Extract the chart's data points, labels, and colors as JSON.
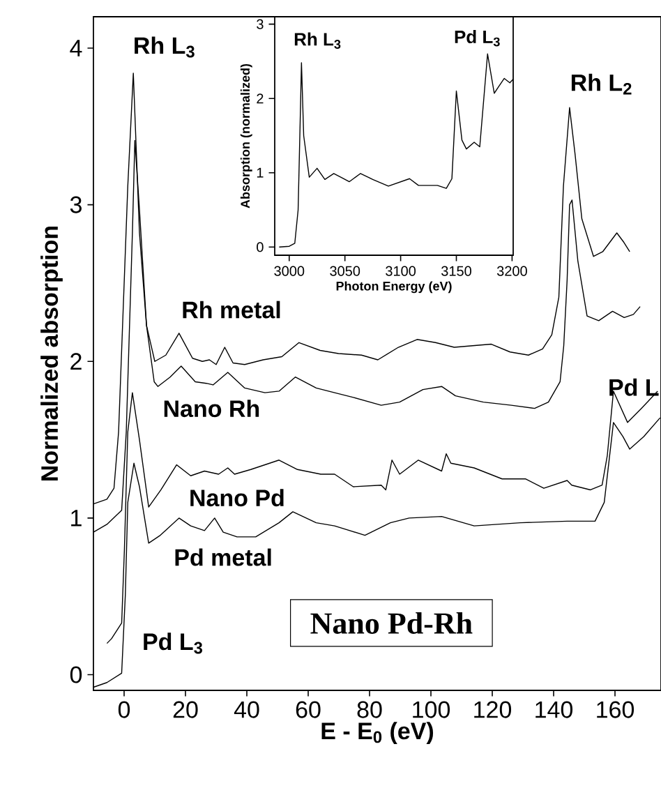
{
  "chart_data": [
    {
      "type": "line",
      "xlabel": "E - E$_{0}$ (eV)",
      "ylabel": "Normalized absorption",
      "xlim": [
        -10,
        175
      ],
      "ylim": [
        -0.1,
        4.2
      ],
      "xticks": [
        0,
        20,
        40,
        60,
        80,
        100,
        120,
        140,
        160
      ],
      "yticks": [
        0,
        1,
        2,
        3,
        4
      ],
      "series": [
        {
          "name": "Rh metal",
          "color": "#000000",
          "x": [
            -10,
            -5.6,
            -3.3,
            -1.8,
            1.2,
            3,
            5,
            7.3,
            10,
            13.6,
            17.9,
            22.3,
            25.5,
            27.8,
            30,
            32.8,
            35.5,
            39.3,
            45.3,
            51.4,
            57,
            63.9,
            69.9,
            77.4,
            82.7,
            89.4,
            95.5,
            101.5,
            107.6,
            113.6,
            119.7,
            125.8,
            131.8,
            136.4,
            139.4,
            141.7,
            143.2,
            145.2,
            147,
            149.2,
            153,
            156,
            160.6,
            162.9,
            164.8
          ],
          "values": [
            1.09,
            1.12,
            1.19,
            1.55,
            3.12,
            3.84,
            2.82,
            2.23,
            2.0,
            2.04,
            2.18,
            2.02,
            2.0,
            2.01,
            1.98,
            2.09,
            1.99,
            1.98,
            2.01,
            2.03,
            2.12,
            2.07,
            2.05,
            2.04,
            2.01,
            2.09,
            2.14,
            2.12,
            2.09,
            2.1,
            2.11,
            2.06,
            2.04,
            2.08,
            2.17,
            2.41,
            3.12,
            3.62,
            3.32,
            2.91,
            2.67,
            2.7,
            2.82,
            2.76,
            2.7
          ]
        },
        {
          "name": "Nano Rh",
          "color": "#000000",
          "x": [
            -10,
            -5.6,
            -0.8,
            0.7,
            2.7,
            3.5,
            5,
            7.3,
            9.8,
            11,
            15,
            18.6,
            23.2,
            26.8,
            29,
            33.8,
            39.3,
            45.9,
            50.5,
            55.8,
            62.6,
            68.6,
            74.7,
            83.8,
            89.8,
            97.4,
            103.5,
            108,
            117.1,
            126.2,
            133.8,
            138.3,
            142.1,
            143.3,
            144.4,
            145.2,
            146,
            147.9,
            150.9,
            154.7,
            159.2,
            163,
            166,
            168.2
          ],
          "values": [
            0.91,
            0.96,
            1.05,
            1.55,
            2.82,
            3.41,
            2.97,
            2.23,
            1.87,
            1.84,
            1.9,
            1.97,
            1.87,
            1.86,
            1.85,
            1.93,
            1.83,
            1.8,
            1.81,
            1.9,
            1.83,
            1.8,
            1.77,
            1.72,
            1.74,
            1.82,
            1.84,
            1.78,
            1.74,
            1.72,
            1.7,
            1.74,
            1.87,
            2.1,
            2.52,
            3.0,
            3.03,
            2.64,
            2.29,
            2.26,
            2.32,
            2.28,
            2.3,
            2.35
          ]
        },
        {
          "name": "Nano Pd",
          "color": "#000000",
          "x": [
            -5.6,
            -4.1,
            -0.8,
            0.1,
            1.2,
            2.7,
            5,
            8,
            12,
            17.1,
            21.7,
            26.2,
            30.8,
            33.8,
            36,
            41.3,
            50.5,
            56.5,
            64.1,
            68.6,
            74.7,
            83.8,
            85.3,
            87.3,
            89.8,
            95.9,
            103.5,
            105,
            106.5,
            114.1,
            123.2,
            130.8,
            136.8,
            144.4,
            145.9,
            152,
            155.8,
            157.5,
            159.5,
            164.1,
            168.6,
            173.9
          ],
          "values": [
            0.2,
            0.23,
            0.33,
            0.8,
            1.55,
            1.8,
            1.5,
            1.07,
            1.18,
            1.34,
            1.27,
            1.3,
            1.28,
            1.32,
            1.28,
            1.31,
            1.37,
            1.31,
            1.28,
            1.28,
            1.2,
            1.21,
            1.18,
            1.37,
            1.28,
            1.37,
            1.3,
            1.41,
            1.35,
            1.32,
            1.25,
            1.25,
            1.19,
            1.24,
            1.21,
            1.18,
            1.21,
            1.4,
            1.81,
            1.61,
            1.7,
            1.81
          ]
        },
        {
          "name": "Pd metal",
          "color": "#000000",
          "x": [
            -10,
            -5.6,
            -0.8,
            0.4,
            1.2,
            3.2,
            5,
            8,
            11.8,
            17.9,
            21.7,
            26.2,
            29.5,
            32.3,
            36.8,
            42.9,
            50.5,
            55,
            62.6,
            68.6,
            78.5,
            86.8,
            92.9,
            103.5,
            114.1,
            129.2,
            144.4,
            153.5,
            156.5,
            159.5,
            162.6,
            164.8,
            169.4,
            174.7
          ],
          "values": [
            -0.08,
            -0.05,
            0.01,
            0.51,
            1.1,
            1.35,
            1.2,
            0.84,
            0.89,
            1.0,
            0.95,
            0.92,
            1.0,
            0.91,
            0.88,
            0.88,
            0.97,
            1.04,
            0.97,
            0.95,
            0.89,
            0.97,
            1.0,
            1.01,
            0.95,
            0.97,
            0.98,
            0.98,
            1.1,
            1.61,
            1.52,
            1.44,
            1.52,
            1.64
          ]
        }
      ],
      "annotations": [
        "Rh L$_{3}$",
        "Rh L$_{2}$",
        "Pd L$_{3}$",
        "Pd L",
        "Nano Pd-Rh"
      ]
    },
    {
      "type": "line",
      "xlabel": "Photon Energy (eV)",
      "ylabel": "Absorption (normalized)",
      "xlim": [
        2987,
        3201
      ],
      "ylim": [
        -0.11,
        3.1
      ],
      "xticks": [
        3000,
        3050,
        3100,
        3150,
        3200
      ],
      "yticks": [
        0,
        1,
        2,
        3
      ],
      "series": [
        {
          "color": "#000000",
          "x": [
            2991,
            3000,
            3005,
            3008,
            3010,
            3011,
            3013,
            3018,
            3025,
            3032,
            3040,
            3054,
            3064,
            3075,
            3089,
            3108,
            3116,
            3133,
            3141,
            3146,
            3150,
            3155,
            3159,
            3166,
            3171,
            3178,
            3184,
            3188,
            3193,
            3198,
            3201
          ],
          "values": [
            0,
            0.01,
            0.05,
            0.5,
            1.8,
            2.48,
            1.5,
            0.94,
            1.06,
            0.91,
            0.99,
            0.88,
            0.99,
            0.91,
            0.82,
            0.92,
            0.83,
            0.83,
            0.79,
            0.92,
            2.1,
            1.44,
            1.32,
            1.41,
            1.35,
            2.6,
            2.07,
            2.16,
            2.27,
            2.21,
            2.26
          ]
        }
      ],
      "annotations": [
        "Rh L$_{3}$",
        "Pd L$_{3}$"
      ]
    }
  ]
}
